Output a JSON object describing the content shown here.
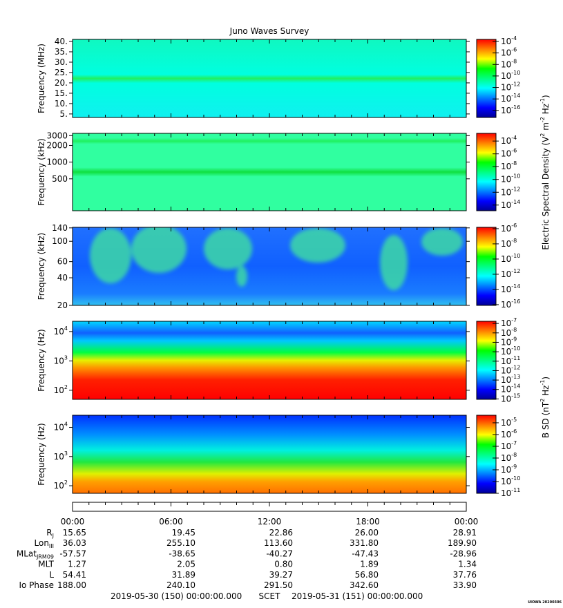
{
  "chart_data": [
    {
      "type": "spectrogram",
      "title": "Juno Waves Survey",
      "ylabel": "Frequency (MHz)",
      "log": false,
      "ylim": [
        3.3,
        41
      ],
      "yticks": [
        {
          "value": 5,
          "label": "5."
        },
        {
          "value": 10,
          "label": "10."
        },
        {
          "value": 15,
          "label": "15."
        },
        {
          "value": 20,
          "label": "20."
        },
        {
          "value": 25,
          "label": "25."
        },
        {
          "value": 30,
          "label": "30."
        },
        {
          "value": 35,
          "label": "35."
        },
        {
          "value": 40,
          "label": "40."
        }
      ],
      "clim": [
        6e-18,
        0.00023
      ],
      "cticks": [
        {
          "value": 0.0001,
          "label": "10^{-4}"
        },
        {
          "value": 1e-06,
          "label": "10^{-6}"
        },
        {
          "value": 1e-08,
          "label": "10^{-8}"
        },
        {
          "value": 1e-10,
          "label": "10^{-10}"
        },
        {
          "value": 1e-12,
          "label": "10^{-12}"
        },
        {
          "value": 1e-14,
          "label": "10^{-14}"
        },
        {
          "value": 1e-16,
          "label": "10^{-16}"
        }
      ],
      "colormap": [
        "#000096",
        "#0000ff",
        "#0080ff",
        "#00ffff",
        "#00ff80",
        "#00ff00",
        "#ffff00",
        "#ff8000",
        "#ff0000"
      ]
    },
    {
      "type": "spectrogram",
      "ylabel": "Frequency (kHz)",
      "log": true,
      "ylim": [
        133,
        3300
      ],
      "yticks": [
        500,
        1000,
        2000,
        3000
      ],
      "clim": [
        1.3e-15,
        0.0016
      ],
      "cticks": [
        {
          "value": 0.0001,
          "label": "10^{-4}"
        },
        {
          "value": 1e-06,
          "label": "10^{-6}"
        },
        {
          "value": 1e-08,
          "label": "10^{-8}"
        },
        {
          "value": 1e-10,
          "label": "10^{-10}"
        },
        {
          "value": 1e-12,
          "label": "10^{-12}"
        },
        {
          "value": 1e-14,
          "label": "10^{-14}"
        }
      ],
      "colormap": [
        "#000096",
        "#0000ff",
        "#0080ff",
        "#00ffff",
        "#00ff80",
        "#00ff00",
        "#ffff00",
        "#ff8000",
        "#ff0000"
      ],
      "colorbar_label": "Electric Spectral Density (V^{2} m^{-2} Hz^{-1})"
    },
    {
      "type": "spectrogram",
      "ylabel": "Frequency (kHz)",
      "log": true,
      "ylim": [
        20,
        142
      ],
      "yticks": [
        20,
        40,
        60,
        100,
        140
      ],
      "clim": [
        8e-17,
        1.5e-06
      ],
      "cticks": [
        {
          "value": 1e-06,
          "label": "10^{-6}"
        },
        {
          "value": 1e-08,
          "label": "10^{-8}"
        },
        {
          "value": 1e-10,
          "label": "10^{-10}"
        },
        {
          "value": 1e-12,
          "label": "10^{-12}"
        },
        {
          "value": 1e-14,
          "label": "10^{-14}"
        },
        {
          "value": 1e-16,
          "label": "10^{-16}"
        }
      ],
      "colormap": [
        "#000096",
        "#0000ff",
        "#0080ff",
        "#00ffff",
        "#00ff80",
        "#00ff00",
        "#ffff00",
        "#ff8000",
        "#ff0000"
      ]
    },
    {
      "type": "spectrogram",
      "ylabel": "Frequency (Hz)",
      "log": true,
      "ylim": [
        49,
        22400
      ],
      "yticks": [
        {
          "value": 100,
          "label": "10^{2}"
        },
        {
          "value": 1000,
          "label": "10^{3}"
        },
        {
          "value": 10000,
          "label": "10^{4}"
        }
      ],
      "clim": [
        9e-16,
        1.7e-07
      ],
      "cticks": [
        {
          "value": 1e-07,
          "label": "10^{-7}"
        },
        {
          "value": 1e-08,
          "label": "10^{-8}"
        },
        {
          "value": 1e-09,
          "label": "10^{-9}"
        },
        {
          "value": 1e-10,
          "label": "10^{-10}"
        },
        {
          "value": 1e-11,
          "label": "10^{-11}"
        },
        {
          "value": 1e-12,
          "label": "10^{-12}"
        },
        {
          "value": 1e-13,
          "label": "10^{-13}"
        },
        {
          "value": 1e-14,
          "label": "10^{-14}"
        },
        {
          "value": 1e-15,
          "label": "10^{-15}"
        }
      ],
      "colormap": [
        "#000096",
        "#0000ff",
        "#0080ff",
        "#00ffff",
        "#00ff80",
        "#00ff00",
        "#ffff00",
        "#ff8000",
        "#ff0000"
      ]
    },
    {
      "type": "spectrogram",
      "ylabel": "Frequency (Hz)",
      "log": true,
      "ylim": [
        55,
        26000
      ],
      "yticks": [
        {
          "value": 100,
          "label": "10^{2}"
        },
        {
          "value": 1000,
          "label": "10^{3}"
        },
        {
          "value": 10000,
          "label": "10^{4}"
        }
      ],
      "clim": [
        1e-11,
        4.4e-05
      ],
      "cticks": [
        {
          "value": 1e-05,
          "label": "10^{-5}"
        },
        {
          "value": 1e-06,
          "label": "10^{-6}"
        },
        {
          "value": 1e-07,
          "label": "10^{-7}"
        },
        {
          "value": 1e-08,
          "label": "10^{-8}"
        },
        {
          "value": 1e-09,
          "label": "10^{-9}"
        },
        {
          "value": 1e-10,
          "label": "10^{-10}"
        },
        {
          "value": 1e-11,
          "label": "10^{-11}"
        }
      ],
      "colormap": [
        "#000096",
        "#0000ff",
        "#0080ff",
        "#00ffff",
        "#00ff80",
        "#00ff00",
        "#ffff00",
        "#ff8000",
        "#ff0000"
      ],
      "colorbar_label": "B SD (nT^{2} Hz^{-1})"
    }
  ],
  "time_axis": {
    "xticks": [
      "00:00",
      "06:00",
      "12:00",
      "18:00",
      "00:00"
    ],
    "rows": [
      {
        "label": "R_{J}",
        "values": [
          "15.65",
          "19.45",
          "22.86",
          "26.00",
          "28.91"
        ]
      },
      {
        "label": "Lon_{III}",
        "values": [
          "36.03",
          "255.10",
          "113.60",
          "331.80",
          "189.90"
        ]
      },
      {
        "label": "MLat_{JRM09}",
        "values": [
          "-57.57",
          "-38.65",
          "-40.27",
          "-47.43",
          "-28.96"
        ]
      },
      {
        "label": "MLT",
        "values": [
          "1.27",
          "2.05",
          "0.80",
          "1.89",
          "1.34"
        ]
      },
      {
        "label": "L",
        "values": [
          "54.41",
          "31.89",
          "39.27",
          "56.80",
          "37.76"
        ]
      },
      {
        "label": "Io Phase",
        "values": [
          "188.00",
          "240.10",
          "291.50",
          "342.60",
          "33.90"
        ]
      }
    ]
  },
  "footer": {
    "start": "2019-05-30 (150) 00:00:00.000",
    "frame": "SCET",
    "end": "2019-05-31 (151) 00:00:00.000",
    "stamp": "UIOWA 20200306"
  }
}
